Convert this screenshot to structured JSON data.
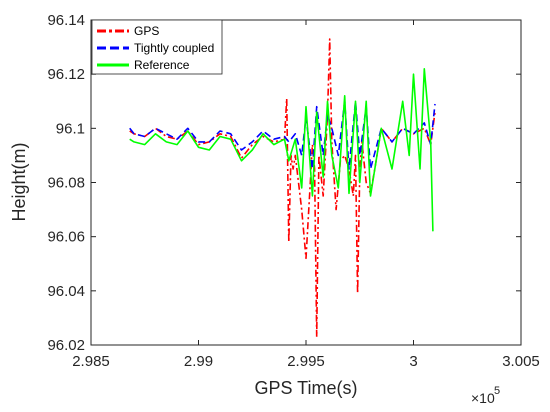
{
  "chart_data": {
    "type": "line",
    "title": "",
    "xlabel": "GPS Time(s)",
    "ylabel": "Height(m)",
    "x_multiplier_label": "×10",
    "x_multiplier_exp": "5",
    "xlim": [
      2.985,
      3.005
    ],
    "ylim": [
      96.02,
      96.14
    ],
    "x_ticks": [
      2.985,
      2.99,
      2.995,
      3.0,
      3.005
    ],
    "x_tick_labels": [
      "2.985",
      "2.99",
      "2.995",
      "3",
      "3.005"
    ],
    "y_ticks": [
      96.02,
      96.04,
      96.06,
      96.08,
      96.1,
      96.12,
      96.14
    ],
    "y_tick_labels": [
      "96.02",
      "96.04",
      "96.06",
      "96.08",
      "96.1",
      "96.12",
      "96.14"
    ],
    "grid": false,
    "legend_position": "top-left",
    "series": [
      {
        "name": "GPS",
        "color": "#ff0000",
        "dash": "dashdot",
        "x": [
          2.9868,
          2.987,
          2.9875,
          2.988,
          2.9885,
          2.989,
          2.9895,
          2.99,
          2.9905,
          2.991,
          2.9915,
          2.992,
          2.9925,
          2.993,
          2.9935,
          2.994,
          2.9941,
          2.9942,
          2.9943,
          2.9944,
          2.9945,
          2.9948,
          2.995,
          2.9952,
          2.9953,
          2.9954,
          2.9955,
          2.9956,
          2.9958,
          2.996,
          2.9961,
          2.9962,
          2.9964,
          2.9966,
          2.9968,
          2.997,
          2.9972,
          2.9973,
          2.9974,
          2.9975,
          2.9976,
          2.9978,
          2.998,
          2.9982,
          2.9985,
          2.999,
          2.9995,
          3.0,
          3.0005,
          3.0008,
          3.001
        ],
        "y": [
          96.099,
          96.098,
          96.097,
          96.1,
          96.097,
          96.096,
          96.099,
          96.094,
          96.095,
          96.098,
          96.097,
          96.089,
          96.094,
          96.097,
          96.095,
          96.096,
          96.111,
          96.058,
          96.09,
          96.085,
          96.09,
          96.07,
          96.052,
          96.08,
          96.094,
          96.085,
          96.023,
          96.09,
          96.075,
          96.105,
          96.133,
          96.095,
          96.07,
          96.088,
          96.09,
          96.085,
          96.075,
          96.09,
          96.039,
          96.085,
          96.095,
          96.08,
          96.076,
          96.085,
          96.1,
          96.095,
          96.1,
          96.098,
          96.1,
          96.094,
          96.106
        ]
      },
      {
        "name": "Tightly coupled",
        "color": "#0000ff",
        "dash": "dashed",
        "x": [
          2.9868,
          2.987,
          2.9875,
          2.988,
          2.9885,
          2.989,
          2.9895,
          2.99,
          2.9905,
          2.991,
          2.9915,
          2.992,
          2.9925,
          2.993,
          2.9935,
          2.994,
          2.9942,
          2.9945,
          2.9948,
          2.995,
          2.9953,
          2.9955,
          2.9958,
          2.996,
          2.9962,
          2.9965,
          2.9968,
          2.997,
          2.9973,
          2.9975,
          2.9978,
          2.998,
          2.9985,
          2.999,
          2.9995,
          3.0,
          3.0005,
          3.0008,
          3.001
        ],
        "y": [
          96.1,
          96.098,
          96.097,
          96.1,
          96.098,
          96.096,
          96.1,
          96.095,
          96.095,
          96.099,
          96.098,
          96.092,
          96.095,
          96.099,
          96.096,
          96.097,
          96.095,
          96.098,
          96.09,
          96.104,
          96.085,
          96.108,
          96.09,
          96.105,
          96.1,
          96.09,
          96.11,
          96.085,
          96.11,
          96.09,
          96.108,
          96.085,
          96.1,
          96.095,
          96.1,
          96.098,
          96.102,
          96.094,
          96.109
        ]
      },
      {
        "name": "Reference",
        "color": "#00ff00",
        "dash": "solid",
        "x": [
          2.9868,
          2.987,
          2.9875,
          2.988,
          2.9885,
          2.989,
          2.9895,
          2.99,
          2.9905,
          2.991,
          2.9915,
          2.992,
          2.9925,
          2.993,
          2.9935,
          2.994,
          2.9942,
          2.9945,
          2.9948,
          2.995,
          2.9953,
          2.9955,
          2.9958,
          2.996,
          2.9962,
          2.9965,
          2.9968,
          2.997,
          2.9973,
          2.9975,
          2.9978,
          2.998,
          2.9985,
          2.999,
          2.9995,
          2.9998,
          3.0,
          3.0003,
          3.0005,
          3.0008,
          3.0009
        ],
        "y": [
          96.096,
          96.095,
          96.094,
          96.098,
          96.095,
          96.094,
          96.099,
          96.093,
          96.092,
          96.097,
          96.096,
          96.088,
          96.092,
          96.098,
          96.094,
          96.096,
          96.088,
          96.096,
          96.078,
          96.108,
          96.075,
          96.106,
          96.082,
          96.11,
          96.09,
          96.078,
          96.112,
          96.076,
          96.11,
          96.08,
          96.11,
          96.075,
          96.1,
          96.085,
          96.11,
          96.09,
          96.12,
          96.085,
          96.122,
          96.095,
          96.062
        ]
      }
    ]
  }
}
